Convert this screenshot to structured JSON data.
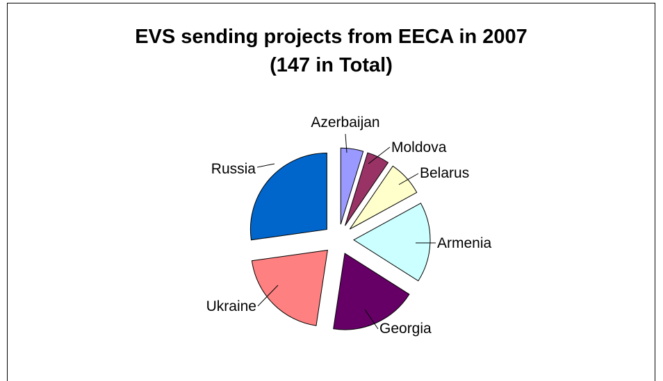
{
  "chart_data": {
    "type": "pie",
    "title": "EVS sending projects from EECA in 2007",
    "subtitle": "(147 in Total)",
    "slices": [
      {
        "label": "Azerbaijan",
        "value": 7,
        "color": "#9999ff"
      },
      {
        "label": "Moldova",
        "value": 7,
        "color": "#993366"
      },
      {
        "label": "Belarus",
        "value": 11,
        "color": "#ffffcc"
      },
      {
        "label": "Armenia",
        "value": 25,
        "color": "#ccffff"
      },
      {
        "label": "Georgia",
        "value": 27,
        "color": "#660066"
      },
      {
        "label": "Ukraine",
        "value": 30,
        "color": "#ff8080"
      },
      {
        "label": "Russia",
        "value": 40,
        "color": "#0066cc"
      }
    ],
    "legend": "none",
    "exploded": true
  }
}
